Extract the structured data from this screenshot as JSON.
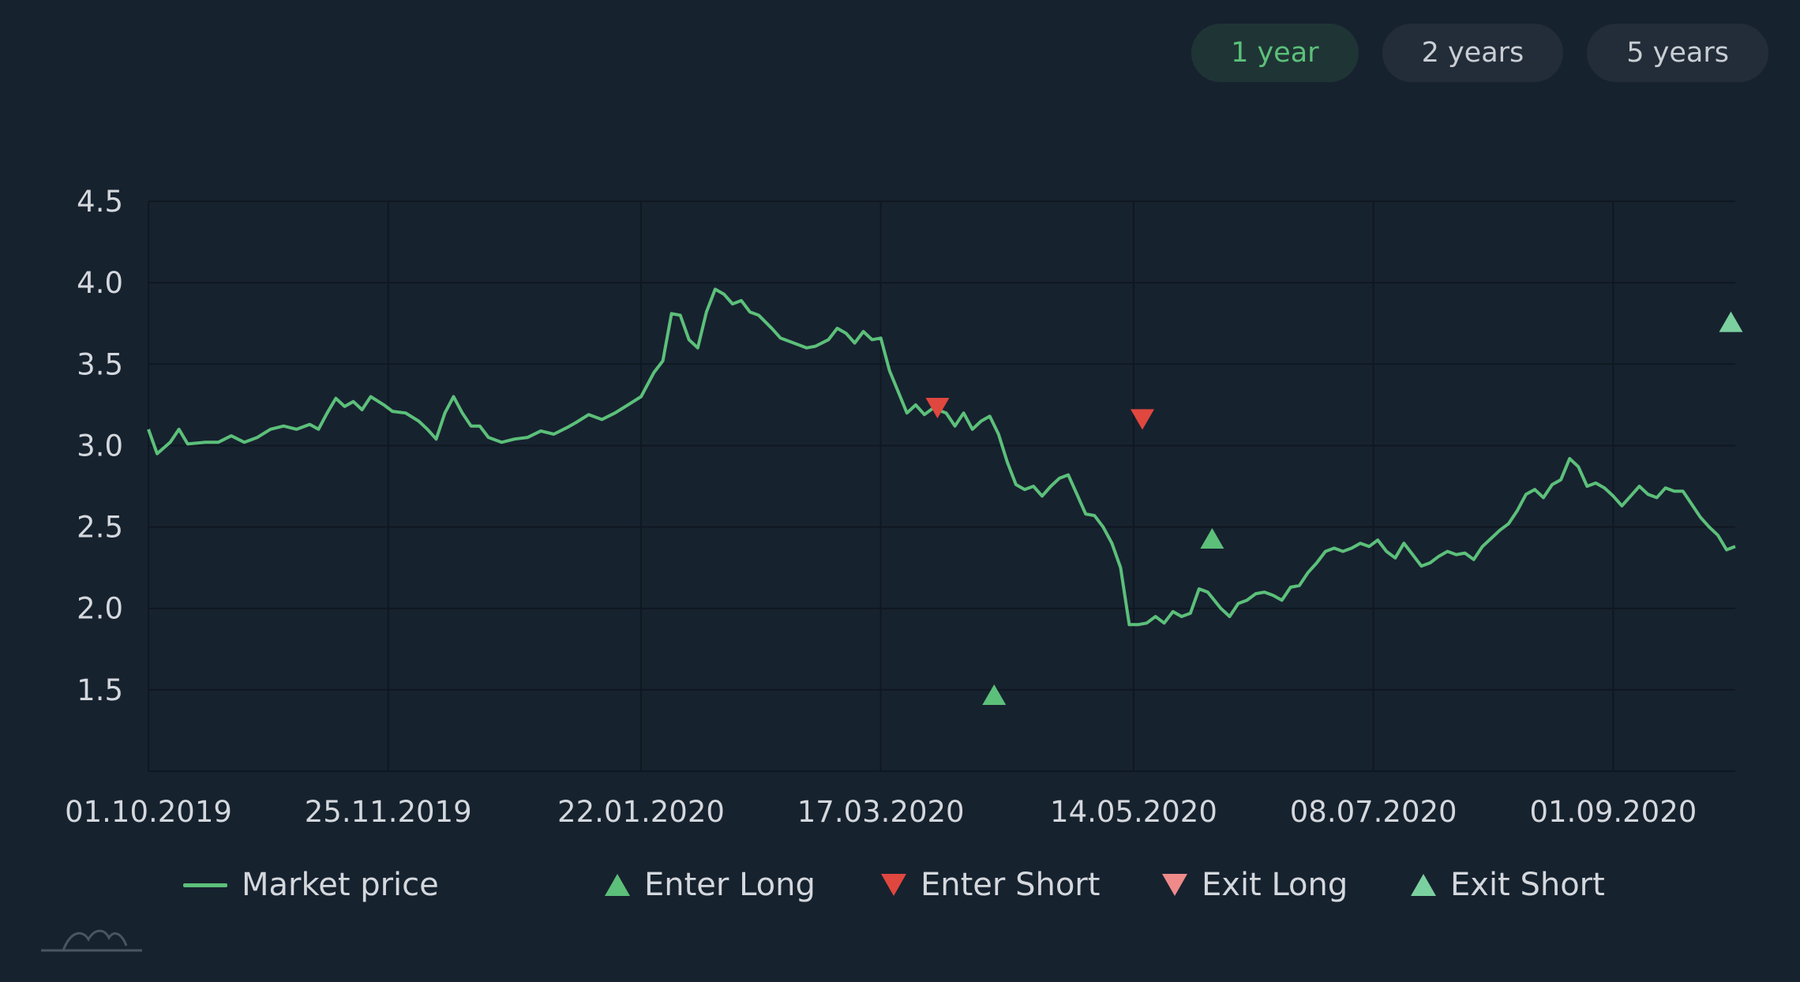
{
  "range_buttons": [
    {
      "label": "1 year",
      "active": true
    },
    {
      "label": "2 years",
      "active": false
    },
    {
      "label": "5 years",
      "active": false
    }
  ],
  "legend": {
    "market_price": "Market price",
    "enter_long": "Enter Long",
    "enter_short": "Enter Short",
    "exit_long": "Exit Long",
    "exit_short": "Exit Short"
  },
  "colors": {
    "background": "#17222f",
    "line": "#5cc07a",
    "enter_long": "#5cc07a",
    "enter_short": "#e0473f",
    "exit_long": "#ef8a8a",
    "exit_short": "#7bd0a0",
    "grid": "#0f1821",
    "tick_text": "#d4d8dd"
  },
  "chart_data": {
    "type": "line",
    "title": "",
    "xlabel": "",
    "ylabel": "",
    "ylim": [
      1.0,
      4.5
    ],
    "yticks": [
      1.5,
      2.0,
      2.5,
      3.0,
      3.5,
      4.0,
      4.5
    ],
    "xticks": [
      "01.10.2019",
      "25.11.2019",
      "22.01.2020",
      "17.03.2020",
      "14.05.2020",
      "08.07.2020",
      "01.09.2020"
    ],
    "xlim": [
      "2019-10-01",
      "2020-09-29"
    ],
    "grid": true,
    "legend_position": "bottom",
    "series": [
      {
        "name": "Market price",
        "points": [
          [
            "2019-10-01",
            3.1
          ],
          [
            "2019-10-03",
            2.95
          ],
          [
            "2019-10-06",
            3.02
          ],
          [
            "2019-10-08",
            3.1
          ],
          [
            "2019-10-10",
            3.01
          ],
          [
            "2019-10-14",
            3.02
          ],
          [
            "2019-10-17",
            3.02
          ],
          [
            "2019-10-20",
            3.06
          ],
          [
            "2019-10-23",
            3.02
          ],
          [
            "2019-10-26",
            3.05
          ],
          [
            "2019-10-29",
            3.1
          ],
          [
            "2019-11-01",
            3.12
          ],
          [
            "2019-11-04",
            3.1
          ],
          [
            "2019-11-07",
            3.13
          ],
          [
            "2019-11-09",
            3.1
          ],
          [
            "2019-11-11",
            3.2
          ],
          [
            "2019-11-13",
            3.29
          ],
          [
            "2019-11-15",
            3.24
          ],
          [
            "2019-11-17",
            3.27
          ],
          [
            "2019-11-19",
            3.22
          ],
          [
            "2019-11-21",
            3.3
          ],
          [
            "2019-11-24",
            3.25
          ],
          [
            "2019-11-26",
            3.21
          ],
          [
            "2019-11-29",
            3.2
          ],
          [
            "2019-12-02",
            3.15
          ],
          [
            "2019-12-04",
            3.1
          ],
          [
            "2019-12-06",
            3.04
          ],
          [
            "2019-12-08",
            3.2
          ],
          [
            "2019-12-10",
            3.3
          ],
          [
            "2019-12-12",
            3.2
          ],
          [
            "2019-12-14",
            3.12
          ],
          [
            "2019-12-16",
            3.12
          ],
          [
            "2019-12-18",
            3.05
          ],
          [
            "2019-12-21",
            3.02
          ],
          [
            "2019-12-24",
            3.04
          ],
          [
            "2019-12-27",
            3.05
          ],
          [
            "2019-12-30",
            3.09
          ],
          [
            "2020-01-02",
            3.07
          ],
          [
            "2020-01-05",
            3.11
          ],
          [
            "2020-01-07",
            3.14
          ],
          [
            "2020-01-10",
            3.19
          ],
          [
            "2020-01-13",
            3.16
          ],
          [
            "2020-01-16",
            3.2
          ],
          [
            "2020-01-19",
            3.25
          ],
          [
            "2020-01-22",
            3.3
          ],
          [
            "2020-01-25",
            3.45
          ],
          [
            "2020-01-27",
            3.52
          ],
          [
            "2020-01-29",
            3.81
          ],
          [
            "2020-01-31",
            3.8
          ],
          [
            "2020-02-02",
            3.65
          ],
          [
            "2020-02-04",
            3.6
          ],
          [
            "2020-02-06",
            3.82
          ],
          [
            "2020-02-08",
            3.96
          ],
          [
            "2020-02-10",
            3.93
          ],
          [
            "2020-02-12",
            3.87
          ],
          [
            "2020-02-14",
            3.89
          ],
          [
            "2020-02-16",
            3.82
          ],
          [
            "2020-02-18",
            3.8
          ],
          [
            "2020-02-21",
            3.72
          ],
          [
            "2020-02-23",
            3.66
          ],
          [
            "2020-02-26",
            3.63
          ],
          [
            "2020-02-29",
            3.6
          ],
          [
            "2020-03-02",
            3.61
          ],
          [
            "2020-03-05",
            3.65
          ],
          [
            "2020-03-07",
            3.72
          ],
          [
            "2020-03-09",
            3.69
          ],
          [
            "2020-03-11",
            3.63
          ],
          [
            "2020-03-13",
            3.7
          ],
          [
            "2020-03-15",
            3.65
          ],
          [
            "2020-03-17",
            3.66
          ],
          [
            "2020-03-19",
            3.46
          ],
          [
            "2020-03-21",
            3.33
          ],
          [
            "2020-03-23",
            3.2
          ],
          [
            "2020-03-25",
            3.25
          ],
          [
            "2020-03-27",
            3.19
          ],
          [
            "2020-03-29",
            3.23
          ],
          [
            "2020-04-01",
            3.2
          ],
          [
            "2020-04-03",
            3.12
          ],
          [
            "2020-04-05",
            3.2
          ],
          [
            "2020-04-07",
            3.1
          ],
          [
            "2020-04-09",
            3.15
          ],
          [
            "2020-04-11",
            3.18
          ],
          [
            "2020-04-13",
            3.07
          ],
          [
            "2020-04-15",
            2.9
          ],
          [
            "2020-04-17",
            2.76
          ],
          [
            "2020-04-19",
            2.73
          ],
          [
            "2020-04-21",
            2.75
          ],
          [
            "2020-04-23",
            2.69
          ],
          [
            "2020-04-25",
            2.75
          ],
          [
            "2020-04-27",
            2.8
          ],
          [
            "2020-04-29",
            2.82
          ],
          [
            "2020-05-01",
            2.7
          ],
          [
            "2020-05-03",
            2.58
          ],
          [
            "2020-05-05",
            2.57
          ],
          [
            "2020-05-07",
            2.5
          ],
          [
            "2020-05-09",
            2.4
          ],
          [
            "2020-05-11",
            2.25
          ],
          [
            "2020-05-13",
            1.9
          ],
          [
            "2020-05-15",
            1.9
          ],
          [
            "2020-05-17",
            1.91
          ],
          [
            "2020-05-19",
            1.95
          ],
          [
            "2020-05-21",
            1.91
          ],
          [
            "2020-05-23",
            1.98
          ],
          [
            "2020-05-25",
            1.95
          ],
          [
            "2020-05-27",
            1.97
          ],
          [
            "2020-05-29",
            2.12
          ],
          [
            "2020-05-31",
            2.1
          ],
          [
            "2020-06-03",
            2.0
          ],
          [
            "2020-06-05",
            1.95
          ],
          [
            "2020-06-07",
            2.03
          ],
          [
            "2020-06-09",
            2.05
          ],
          [
            "2020-06-11",
            2.09
          ],
          [
            "2020-06-13",
            2.1
          ],
          [
            "2020-06-15",
            2.08
          ],
          [
            "2020-06-17",
            2.05
          ],
          [
            "2020-06-19",
            2.13
          ],
          [
            "2020-06-21",
            2.14
          ],
          [
            "2020-06-23",
            2.22
          ],
          [
            "2020-06-25",
            2.28
          ],
          [
            "2020-06-27",
            2.35
          ],
          [
            "2020-06-29",
            2.37
          ],
          [
            "2020-07-01",
            2.35
          ],
          [
            "2020-07-03",
            2.37
          ],
          [
            "2020-07-05",
            2.4
          ],
          [
            "2020-07-07",
            2.38
          ],
          [
            "2020-07-09",
            2.42
          ],
          [
            "2020-07-11",
            2.35
          ],
          [
            "2020-07-13",
            2.31
          ],
          [
            "2020-07-15",
            2.4
          ],
          [
            "2020-07-17",
            2.33
          ],
          [
            "2020-07-19",
            2.26
          ],
          [
            "2020-07-21",
            2.28
          ],
          [
            "2020-07-23",
            2.32
          ],
          [
            "2020-07-25",
            2.35
          ],
          [
            "2020-07-27",
            2.33
          ],
          [
            "2020-07-29",
            2.34
          ],
          [
            "2020-07-31",
            2.3
          ],
          [
            "2020-08-02",
            2.38
          ],
          [
            "2020-08-04",
            2.43
          ],
          [
            "2020-08-06",
            2.48
          ],
          [
            "2020-08-08",
            2.52
          ],
          [
            "2020-08-10",
            2.6
          ],
          [
            "2020-08-12",
            2.7
          ],
          [
            "2020-08-14",
            2.73
          ],
          [
            "2020-08-16",
            2.68
          ],
          [
            "2020-08-18",
            2.76
          ],
          [
            "2020-08-20",
            2.79
          ],
          [
            "2020-08-22",
            2.92
          ],
          [
            "2020-08-24",
            2.87
          ],
          [
            "2020-08-26",
            2.75
          ],
          [
            "2020-08-28",
            2.77
          ],
          [
            "2020-08-30",
            2.74
          ],
          [
            "2020-09-01",
            2.69
          ],
          [
            "2020-09-03",
            2.63
          ],
          [
            "2020-09-05",
            2.69
          ],
          [
            "2020-09-07",
            2.75
          ],
          [
            "2020-09-09",
            2.7
          ],
          [
            "2020-09-11",
            2.68
          ],
          [
            "2020-09-13",
            2.74
          ],
          [
            "2020-09-15",
            2.72
          ],
          [
            "2020-09-17",
            2.72
          ],
          [
            "2020-09-19",
            2.64
          ],
          [
            "2020-09-21",
            2.56
          ],
          [
            "2020-09-23",
            2.5
          ],
          [
            "2020-09-25",
            2.45
          ],
          [
            "2020-09-27",
            2.36
          ],
          [
            "2020-09-29",
            2.38
          ]
        ]
      }
    ],
    "markers": [
      {
        "type": "Enter Short",
        "x": "2020-03-30",
        "y": 3.23
      },
      {
        "type": "Enter Long",
        "x": "2020-04-12",
        "y": 1.47
      },
      {
        "type": "Enter Short",
        "x": "2020-05-16",
        "y": 3.16
      },
      {
        "type": "Enter Long",
        "x": "2020-06-01",
        "y": 2.43
      },
      {
        "type": "Exit Short",
        "x": "2020-09-28",
        "y": 3.76
      }
    ]
  }
}
